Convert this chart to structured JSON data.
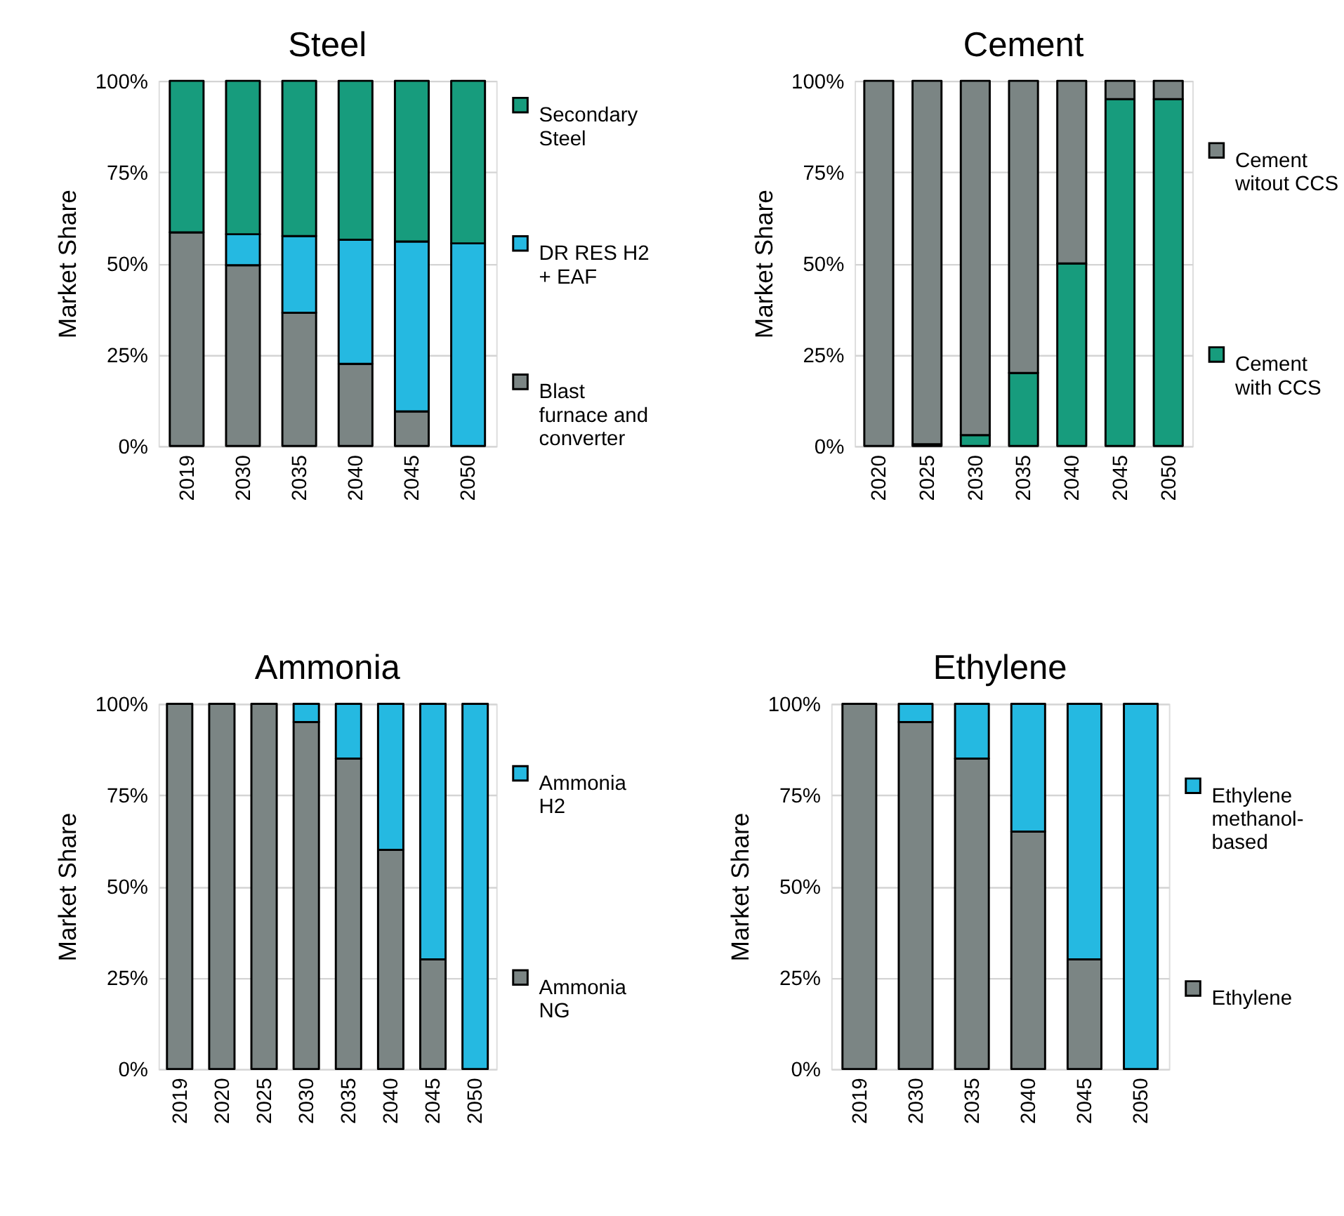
{
  "chart_data": [
    {
      "type": "bar",
      "title": "Steel",
      "ylabel": "Market Share",
      "categories": [
        "2019",
        "2030",
        "2035",
        "2040",
        "2045",
        "2050"
      ],
      "stacked": true,
      "series": [
        {
          "name": "Blast furnace and converter",
          "color": "#7b8584",
          "values": [
            58.5,
            49.5,
            36.5,
            22.5,
            9.5,
            0
          ]
        },
        {
          "name": "DR RES H2 + EAF",
          "color": "#25b9e1",
          "values": [
            0,
            8.5,
            21,
            34,
            46.5,
            55.5
          ]
        },
        {
          "name": "Secondary Steel",
          "color": "#179c7d",
          "values": [
            41.5,
            42,
            42.5,
            43.5,
            44,
            44.5
          ]
        }
      ],
      "ylim": [
        0,
        100
      ],
      "yticks": [
        {
          "value": 0,
          "label": "0%"
        },
        {
          "value": 25,
          "label": "25%"
        },
        {
          "value": 50,
          "label": "50%"
        },
        {
          "value": 75,
          "label": "75%"
        },
        {
          "value": 100,
          "label": "100%"
        }
      ],
      "grid": "y",
      "legend": "right"
    },
    {
      "type": "bar",
      "title": "Cement",
      "ylabel": "Market Share",
      "categories": [
        "2020",
        "2025",
        "2030",
        "2035",
        "2040",
        "2045",
        "2050"
      ],
      "stacked": true,
      "series": [
        {
          "name": "Cement with CCS",
          "color": "#179c7d",
          "values": [
            0,
            0.5,
            3,
            20,
            50,
            95,
            95
          ]
        },
        {
          "name": "Cement witout CCS",
          "color": "#7b8584",
          "values": [
            100,
            99.5,
            97,
            80,
            50,
            5,
            5
          ]
        }
      ],
      "ylim": [
        0,
        100
      ],
      "yticks": [
        {
          "value": 0,
          "label": "0%"
        },
        {
          "value": 25,
          "label": "25%"
        },
        {
          "value": 50,
          "label": "50%"
        },
        {
          "value": 75,
          "label": "75%"
        },
        {
          "value": 100,
          "label": "100%"
        }
      ],
      "grid": "y",
      "legend": "right"
    },
    {
      "type": "bar",
      "title": "Ammonia",
      "ylabel": "Market Share",
      "categories": [
        "2019",
        "2020",
        "2025",
        "2030",
        "2035",
        "2040",
        "2045",
        "2050"
      ],
      "stacked": true,
      "series": [
        {
          "name": "Ammonia NG",
          "color": "#7b8584",
          "values": [
            100,
            100,
            100,
            95,
            85,
            60,
            30,
            0
          ]
        },
        {
          "name": "Ammonia H2",
          "color": "#25b9e1",
          "values": [
            0,
            0,
            0,
            5,
            15,
            40,
            70,
            100
          ]
        }
      ],
      "ylim": [
        0,
        100
      ],
      "yticks": [
        {
          "value": 0,
          "label": "0%"
        },
        {
          "value": 25,
          "label": "25%"
        },
        {
          "value": 50,
          "label": "50%"
        },
        {
          "value": 75,
          "label": "75%"
        },
        {
          "value": 100,
          "label": "100%"
        }
      ],
      "grid": "y",
      "legend": "right"
    },
    {
      "type": "bar",
      "title": "Ethylene",
      "ylabel": "Market Share",
      "categories": [
        "2019",
        "2030",
        "2035",
        "2040",
        "2045",
        "2050"
      ],
      "stacked": true,
      "series": [
        {
          "name": "Ethylene",
          "color": "#7b8584",
          "values": [
            100,
            95,
            85,
            65,
            30,
            0
          ]
        },
        {
          "name": "Ethylene methanol-based",
          "color": "#25b9e1",
          "values": [
            0,
            5,
            15,
            35,
            70,
            100
          ]
        }
      ],
      "ylim": [
        0,
        100
      ],
      "yticks": [
        {
          "value": 0,
          "label": "0%"
        },
        {
          "value": 25,
          "label": "25%"
        },
        {
          "value": 50,
          "label": "50%"
        },
        {
          "value": 75,
          "label": "75%"
        },
        {
          "value": 100,
          "label": "100%"
        }
      ],
      "grid": "y",
      "legend": "right"
    }
  ]
}
